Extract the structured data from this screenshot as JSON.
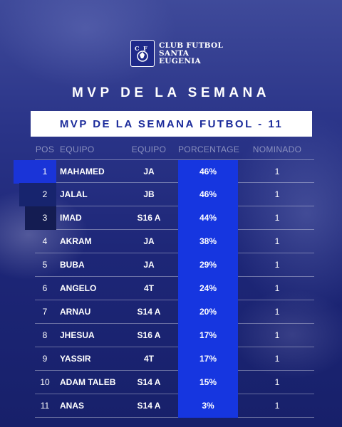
{
  "club": {
    "line1": "CLUB FUTBOL",
    "line2": "SANTA",
    "line3": "EUGENIA"
  },
  "title": "MVP DE LA SEMANA",
  "banner": "MVP DE LA SEMANA FUTBOL - 11",
  "headers": {
    "pos": "POS",
    "player": "EQUIPO",
    "team": "EQUIPO",
    "pct": "PORCENTAGE",
    "nom": "NOMINADO"
  },
  "accent": "#1636e0",
  "rows": [
    {
      "pos": "1",
      "name": "MAHAMED",
      "team": "JA",
      "pct": "46%",
      "nom": "1"
    },
    {
      "pos": "2",
      "name": "JALAL",
      "team": "JB",
      "pct": "46%",
      "nom": "1"
    },
    {
      "pos": "3",
      "name": "IMAD",
      "team": "S16 A",
      "pct": "44%",
      "nom": "1"
    },
    {
      "pos": "4",
      "name": "AKRAM",
      "team": "JA",
      "pct": "38%",
      "nom": "1"
    },
    {
      "pos": "5",
      "name": "BUBA",
      "team": "JA",
      "pct": "29%",
      "nom": "1"
    },
    {
      "pos": "6",
      "name": "ANGELO",
      "team": "4T",
      "pct": "24%",
      "nom": "1"
    },
    {
      "pos": "7",
      "name": "ARNAU",
      "team": "S14 A",
      "pct": "20%",
      "nom": "1"
    },
    {
      "pos": "8",
      "name": "JHESUA",
      "team": "S16 A",
      "pct": "17%",
      "nom": "1"
    },
    {
      "pos": "9",
      "name": "YASSIR",
      "team": "4T",
      "pct": "17%",
      "nom": "1"
    },
    {
      "pos": "10",
      "name": "ADAM TALEB",
      "team": "S14 A",
      "pct": "15%",
      "nom": "1"
    },
    {
      "pos": "11",
      "name": "ANAS",
      "team": "S14 A",
      "pct": "3%",
      "nom": "1"
    }
  ]
}
